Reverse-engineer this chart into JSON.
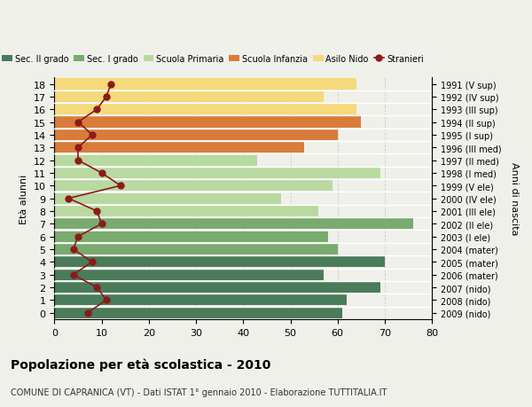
{
  "ages": [
    18,
    17,
    16,
    15,
    14,
    13,
    12,
    11,
    10,
    9,
    8,
    7,
    6,
    5,
    4,
    3,
    2,
    1,
    0
  ],
  "years": [
    "1991 (V sup)",
    "1992 (IV sup)",
    "1993 (III sup)",
    "1994 (II sup)",
    "1995 (I sup)",
    "1996 (III med)",
    "1997 (II med)",
    "1998 (I med)",
    "1999 (V ele)",
    "2000 (IV ele)",
    "2001 (III ele)",
    "2002 (II ele)",
    "2003 (I ele)",
    "2004 (mater)",
    "2005 (mater)",
    "2006 (mater)",
    "2007 (nido)",
    "2008 (nido)",
    "2009 (nido)"
  ],
  "bar_values": [
    61,
    62,
    69,
    57,
    70,
    60,
    58,
    76,
    56,
    48,
    59,
    69,
    43,
    53,
    60,
    65,
    64,
    57,
    64
  ],
  "bar_colors": [
    "#4a7c59",
    "#4a7c59",
    "#4a7c59",
    "#4a7c59",
    "#4a7c59",
    "#7aab6e",
    "#7aab6e",
    "#7aab6e",
    "#b8d9a0",
    "#b8d9a0",
    "#b8d9a0",
    "#b8d9a0",
    "#b8d9a0",
    "#d97c3a",
    "#d97c3a",
    "#d97c3a",
    "#f5d97a",
    "#f5d97a",
    "#f5d97a"
  ],
  "stranieri_values": [
    7,
    11,
    9,
    4,
    8,
    4,
    5,
    10,
    9,
    3,
    14,
    10,
    5,
    5,
    8,
    5,
    9,
    11,
    12
  ],
  "stranieri_color": "#8b1a1a",
  "ylabel_left": "Età alunni",
  "ylabel_right": "Anni di nascita",
  "xlim": [
    0,
    80
  ],
  "xticks": [
    0,
    10,
    20,
    30,
    40,
    50,
    60,
    70,
    80
  ],
  "title": "Popolazione per età scolastica - 2010",
  "subtitle": "COMUNE DI CAPRANICA (VT) - Dati ISTAT 1° gennaio 2010 - Elaborazione TUTTITALIA.IT",
  "legend_labels": [
    "Sec. II grado",
    "Sec. I grado",
    "Scuola Primaria",
    "Scuola Infanzia",
    "Asilo Nido",
    "Stranieri"
  ],
  "legend_colors": [
    "#4a7c59",
    "#7aab6e",
    "#b8d9a0",
    "#d97c3a",
    "#f5d97a",
    "#8b1a1a"
  ],
  "bg_color": "#f0f0eb",
  "grid_color": "#cccccc"
}
